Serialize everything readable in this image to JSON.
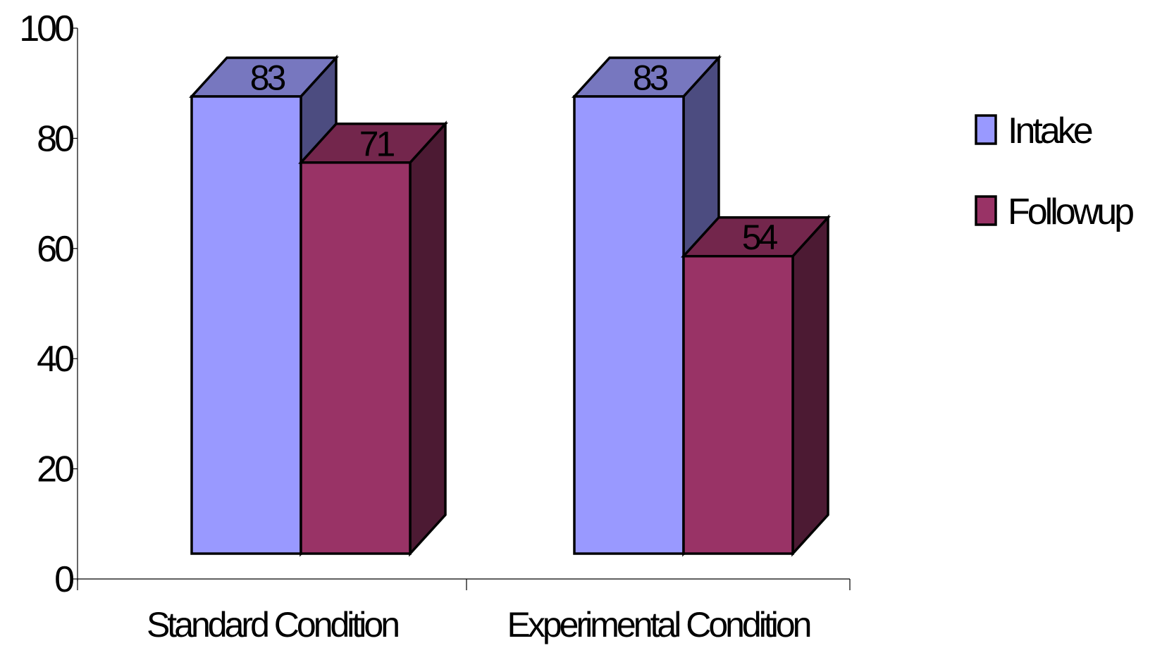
{
  "chart_data": {
    "type": "bar",
    "style": "3d-clustered-column",
    "categories": [
      "Standard Condition",
      "Experimental Condition"
    ],
    "series": [
      {
        "name": "Intake",
        "values": [
          83,
          83
        ],
        "color": "#9999ff",
        "side_color": "#4c4c80",
        "top_color": "#7777bf"
      },
      {
        "name": "Followup",
        "values": [
          71,
          54
        ],
        "color": "#993366",
        "side_color": "#4c1a33",
        "top_color": "#73264c"
      }
    ],
    "yticks": [
      "0",
      "20",
      "40",
      "60",
      "80",
      "100"
    ],
    "ylim": [
      0,
      100
    ],
    "title": "",
    "xlabel": "",
    "ylabel": "",
    "legend": "right",
    "grid": false
  }
}
